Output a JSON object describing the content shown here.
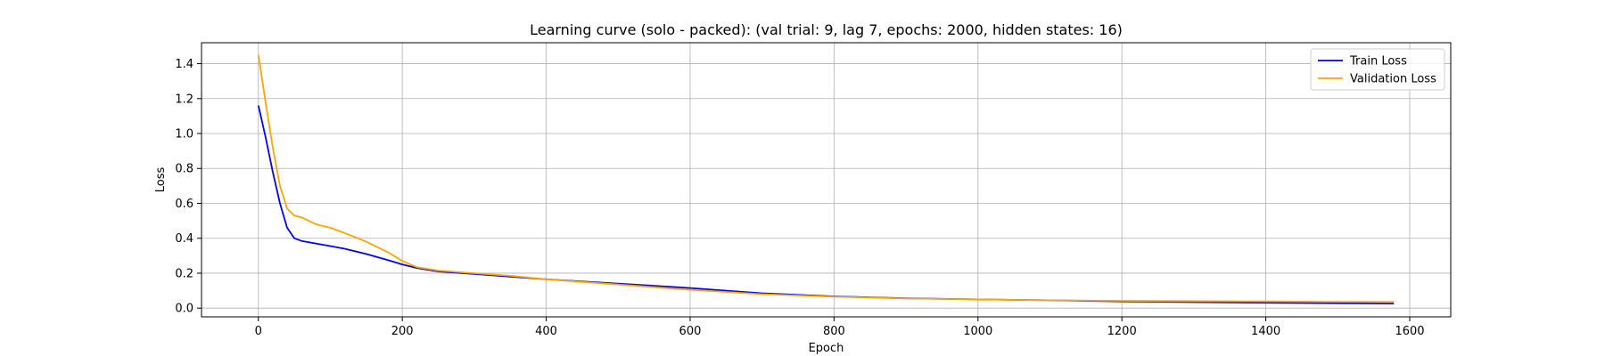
{
  "chart_data": {
    "type": "line",
    "title": "Learning curve (solo - packed): (val trial: 9, lag 7, epochs: 2000, hidden states: 16)",
    "xlabel": "Epoch",
    "ylabel": "Loss",
    "xlim": [
      -79,
      1657
    ],
    "ylim": [
      -0.05,
      1.52
    ],
    "xticks": [
      "0",
      "200",
      "400",
      "600",
      "800",
      "1000",
      "1200",
      "1400",
      "1600"
    ],
    "yticks": [
      "0.0",
      "0.2",
      "0.4",
      "0.6",
      "0.8",
      "1.0",
      "1.2",
      "1.4"
    ],
    "grid": true,
    "legend_position": "top-right",
    "series": [
      {
        "name": "Train Loss",
        "color": "#0000ff",
        "x": [
          0,
          10,
          20,
          30,
          40,
          50,
          60,
          80,
          100,
          120,
          150,
          180,
          200,
          220,
          250,
          300,
          350,
          400,
          500,
          600,
          700,
          800,
          900,
          1000,
          1100,
          1200,
          1300,
          1400,
          1500,
          1578
        ],
        "y": [
          1.16,
          0.98,
          0.78,
          0.6,
          0.46,
          0.4,
          0.385,
          0.37,
          0.355,
          0.34,
          0.31,
          0.275,
          0.25,
          0.23,
          0.21,
          0.195,
          0.18,
          0.165,
          0.14,
          0.115,
          0.085,
          0.067,
          0.056,
          0.05,
          0.045,
          0.038,
          0.034,
          0.031,
          0.028,
          0.026
        ]
      },
      {
        "name": "Validation Loss",
        "color": "#ffa500",
        "x": [
          0,
          10,
          20,
          30,
          40,
          50,
          60,
          70,
          80,
          100,
          120,
          150,
          180,
          200,
          220,
          250,
          300,
          350,
          400,
          500,
          600,
          700,
          800,
          900,
          1000,
          1100,
          1200,
          1300,
          1400,
          1500,
          1578
        ],
        "y": [
          1.45,
          1.18,
          0.92,
          0.7,
          0.57,
          0.53,
          0.52,
          0.5,
          0.48,
          0.46,
          0.43,
          0.38,
          0.32,
          0.27,
          0.235,
          0.215,
          0.2,
          0.185,
          0.165,
          0.135,
          0.105,
          0.08,
          0.065,
          0.055,
          0.05,
          0.045,
          0.042,
          0.04,
          0.038,
          0.036,
          0.035
        ]
      }
    ]
  }
}
